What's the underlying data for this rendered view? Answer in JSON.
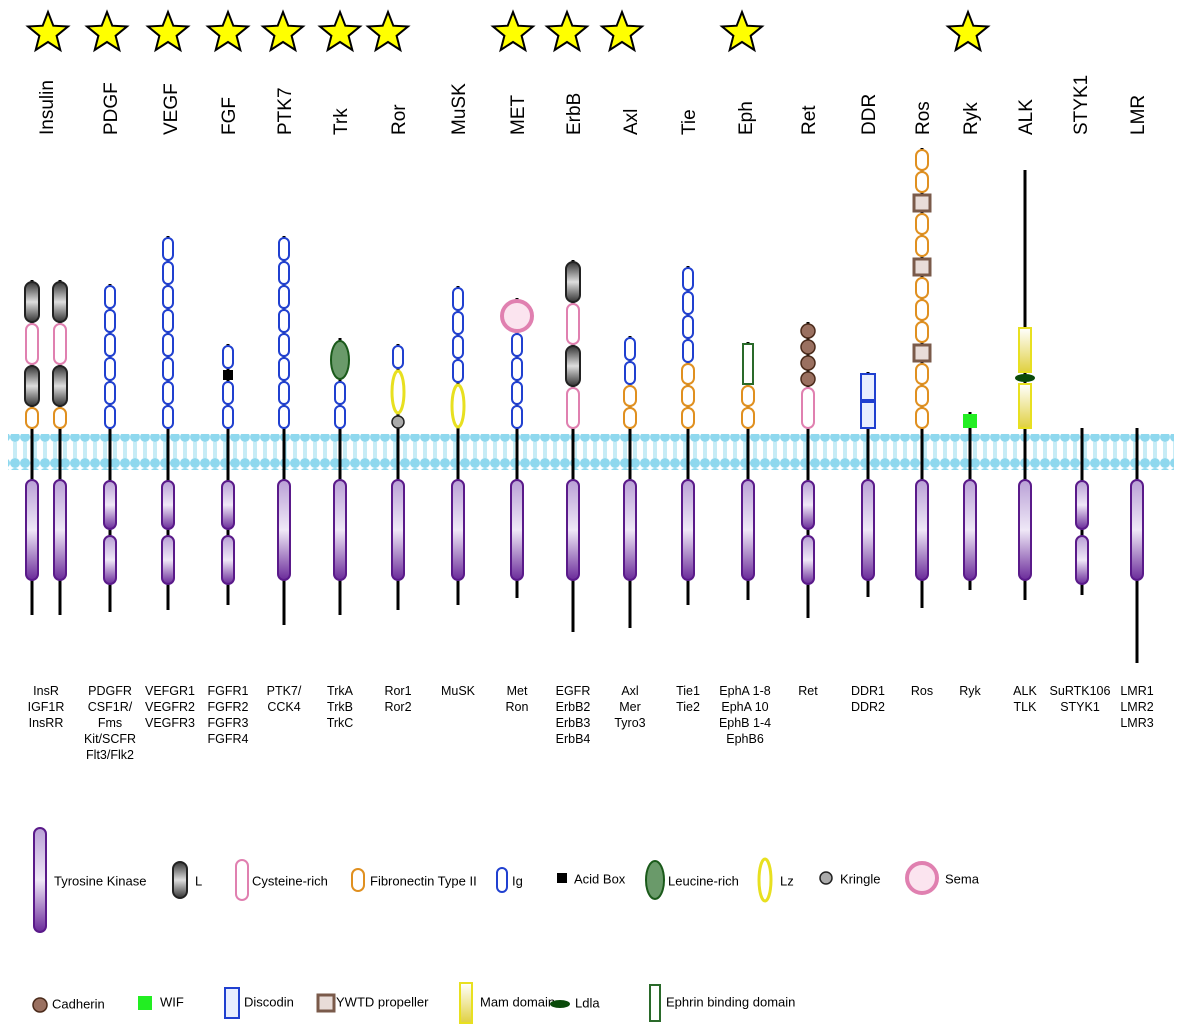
{
  "families": [
    {
      "name": "Insulin",
      "members": [
        "InsR",
        "IGF1R",
        "InsRR"
      ]
    },
    {
      "name": "PDGF",
      "members": [
        "PDGFR",
        "CSF1R/",
        "Fms",
        "Kit/SCFR",
        "Flt3/Flk2"
      ]
    },
    {
      "name": "VEGF",
      "members": [
        "VEFGR1",
        "VEGFR2",
        "VEGFR3"
      ]
    },
    {
      "name": "FGF",
      "members": [
        "FGFR1",
        "FGFR2",
        "FGFR3",
        "FGFR4"
      ]
    },
    {
      "name": "PTK7",
      "members": [
        "PTK7/",
        "CCK4"
      ]
    },
    {
      "name": "Trk",
      "members": [
        "TrkA",
        "TrkB",
        "TrkC"
      ]
    },
    {
      "name": "Ror",
      "members": [
        "Ror1",
        "Ror2"
      ]
    },
    {
      "name": "MuSK",
      "members": [
        "MuSK"
      ]
    },
    {
      "name": "MET",
      "members": [
        "Met",
        "Ron"
      ]
    },
    {
      "name": "ErbB",
      "members": [
        "EGFR",
        "ErbB2",
        "ErbB3",
        "ErbB4"
      ]
    },
    {
      "name": "Axl",
      "members": [
        "Axl",
        "Mer",
        "Tyro3"
      ]
    },
    {
      "name": "Tie",
      "members": [
        "Tie1",
        "Tie2"
      ]
    },
    {
      "name": "Eph",
      "members": [
        "EphA 1-8",
        "EphA 10",
        "EphB 1-4",
        "EphB6"
      ]
    },
    {
      "name": "Ret",
      "members": [
        "Ret"
      ]
    },
    {
      "name": "DDR",
      "members": [
        "DDR1",
        "DDR2"
      ]
    },
    {
      "name": "Ros",
      "members": [
        "Ros"
      ]
    },
    {
      "name": "Ryk",
      "members": [
        "Ryk"
      ]
    },
    {
      "name": "ALK",
      "members": [
        "ALK",
        "TLK"
      ]
    },
    {
      "name": "STYK1",
      "members": [
        "SuRTK106",
        "STYK1"
      ]
    },
    {
      "name": "LMR",
      "members": [
        "LMR1",
        "LMR2",
        "LMR3"
      ]
    }
  ],
  "legend": {
    "items": [
      "Tyrosine Kinase",
      "L",
      "Cysteine-rich",
      "Fibronectin Type II",
      "Ig",
      "Acid Box",
      "Leucine-rich",
      "Lz",
      "Kringle",
      "Sema",
      "Cadherin",
      "WIF",
      "Discodin",
      "YWTD propeller",
      "Mam domain",
      "Ldla",
      "Ephrin binding domain"
    ]
  }
}
